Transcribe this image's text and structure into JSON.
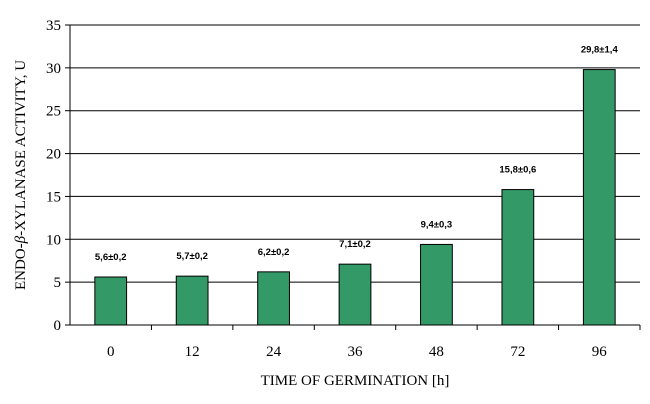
{
  "chart_data": {
    "type": "bar",
    "title": "",
    "xlabel": "TIME OF GERMINATION [h]",
    "ylabel_prefix": "ENDO-",
    "ylabel_greek": "β",
    "ylabel_suffix": "-XYLANASE ACTIVITY, U",
    "ylim": [
      0,
      35
    ],
    "yticks": [
      0,
      5,
      10,
      15,
      20,
      25,
      30,
      35
    ],
    "grid": true,
    "categories": [
      "0",
      "12",
      "24",
      "36",
      "48",
      "72",
      "96"
    ],
    "values": [
      5.6,
      5.7,
      6.2,
      7.1,
      9.4,
      15.8,
      29.8
    ],
    "data_labels": [
      "5,6±0,2",
      "5,7±0,2",
      "6,2±0,2",
      "7,1±0,2",
      "9,4±0,3",
      "15,8±0,6",
      "29,8±1,4"
    ],
    "colors": {
      "bar": "#339966",
      "bar_stroke": "#000000",
      "grid": "#000000",
      "axis": "#000000"
    }
  }
}
